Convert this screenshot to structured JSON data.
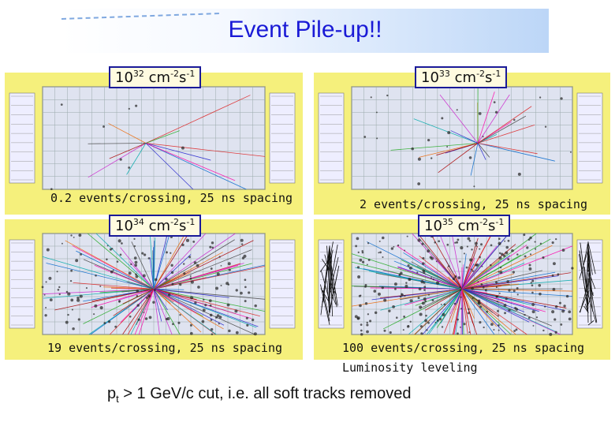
{
  "title": "Event Pile-up!!",
  "panels": [
    {
      "lumi_base": "10",
      "lumi_exp": "32",
      "lumi_unit": " cm",
      "lumi_unit_exp1": "-2",
      "lumi_s": "s",
      "lumi_unit_exp2": "-1",
      "caption": "0.2 events/crossing, 25 ns spacing",
      "track_density": 0.03
    },
    {
      "lumi_base": "10",
      "lumi_exp": "33",
      "lumi_unit": " cm",
      "lumi_unit_exp1": "-2",
      "lumi_s": "s",
      "lumi_unit_exp2": "-1",
      "caption": "2 events/crossing, 25 ns spacing",
      "track_density": 0.1
    },
    {
      "lumi_base": "10",
      "lumi_exp": "34",
      "lumi_unit": " cm",
      "lumi_unit_exp1": "-2",
      "lumi_s": "s",
      "lumi_unit_exp2": "-1",
      "caption": "19 events/crossing, 25 ns spacing",
      "track_density": 0.6
    },
    {
      "lumi_base": "10",
      "lumi_exp": "35",
      "lumi_unit": " cm",
      "lumi_unit_exp1": "-2",
      "lumi_s": "s",
      "lumi_unit_exp2": "-1",
      "caption": "100 events/crossing, 25 ns spacing",
      "caption2": "Luminosity leveling",
      "track_density": 1.0
    }
  ],
  "footer": {
    "p": "p",
    "sub": "t",
    "rest": " > 1 GeV/c cut, i.e. all soft tracks removed"
  },
  "colors": {
    "title": "#1a1ad6",
    "panel_bg": "#f5f07c",
    "detector_bg": "#dfe3f0",
    "box_border": "#1a1a99"
  }
}
